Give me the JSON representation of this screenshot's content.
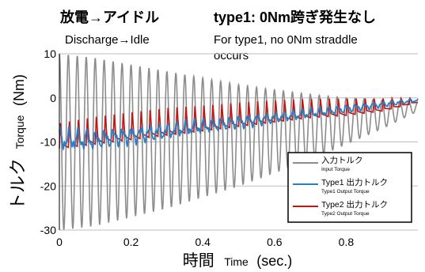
{
  "annotations": {
    "left_title_ja": "放電→アイドル",
    "left_title_en": "Discharge→Idle",
    "right_title_ja": "type1: 0Nm跨ぎ発生なし",
    "right_title_en_1": "For type1, no 0Nm straddle",
    "right_title_en_2": "occurs"
  },
  "colors": {
    "input": "#8c8c8c",
    "type1": "#2a7fc4",
    "type2": "#c41515"
  },
  "chart_data": {
    "type": "line",
    "title": "",
    "xlabel": {
      "ja": "時間",
      "en": "Time",
      "unit": "(sec.)"
    },
    "ylabel": {
      "ja": "トルク",
      "en": "Torque",
      "unit": "(Nm)"
    },
    "xlim": [
      0,
      1
    ],
    "ylim": [
      -30,
      10
    ],
    "xticks": [
      "0",
      "0.2",
      "0.4",
      "0.6",
      "0.8"
    ],
    "yticks": [
      "10",
      "0",
      "-10",
      "-20",
      "-30"
    ],
    "grid": "horizontal",
    "legend_position": "bottom-right",
    "series": [
      {
        "key": "input",
        "name_ja": "入力トルク",
        "name_en": "Input Torque",
        "form": "decaying sinusoid centered at -10 Nm, ~40 Hz",
        "x": [
          0,
          0.1,
          0.2,
          0.3,
          0.4,
          0.5,
          0.6,
          0.7,
          0.8,
          0.9,
          1.0
        ],
        "peak_max": [
          10,
          9,
          7.5,
          6,
          4.5,
          3,
          1.8,
          0.8,
          0,
          -0.5,
          -1
        ],
        "peak_min": [
          -30,
          -29,
          -27,
          -25,
          -22.5,
          -20,
          -17,
          -14,
          -10.5,
          -7,
          -3
        ]
      },
      {
        "key": "type1",
        "name_ja": "Type1 出力トルク",
        "name_en": "Type1 Output Torque",
        "form": "noisy output rising from about -11 Nm toward 0 Nm",
        "x": [
          0,
          0.1,
          0.2,
          0.3,
          0.4,
          0.5,
          0.6,
          0.7,
          0.8,
          0.9,
          1.0
        ],
        "center": [
          -9.5,
          -9.5,
          -8.5,
          -7.5,
          -6.5,
          -5.5,
          -4.5,
          -3.5,
          -2.5,
          -1.5,
          -0.5
        ],
        "amplitude": [
          3,
          2.5,
          2.2,
          2,
          1.8,
          1.6,
          1.4,
          1.2,
          1.0,
          0.7,
          0.5
        ]
      },
      {
        "key": "type2",
        "name_ja": "Type2 出力トルク",
        "name_en": "Type2 Output Torque",
        "form": "sharp periodic spikes rising from about -10 Nm toward 0 Nm",
        "x": [
          0,
          0.1,
          0.2,
          0.3,
          0.4,
          0.5,
          0.6,
          0.7,
          0.8,
          0.9,
          1.0
        ],
        "low": [
          -11.5,
          -10.5,
          -9.5,
          -8.5,
          -7.5,
          -6.5,
          -5.5,
          -4.5,
          -4,
          -3,
          -1
        ],
        "high": [
          -5.5,
          -4,
          -3,
          -2,
          -1.5,
          -0.8,
          -0.3,
          0,
          0,
          0,
          0
        ]
      }
    ]
  }
}
